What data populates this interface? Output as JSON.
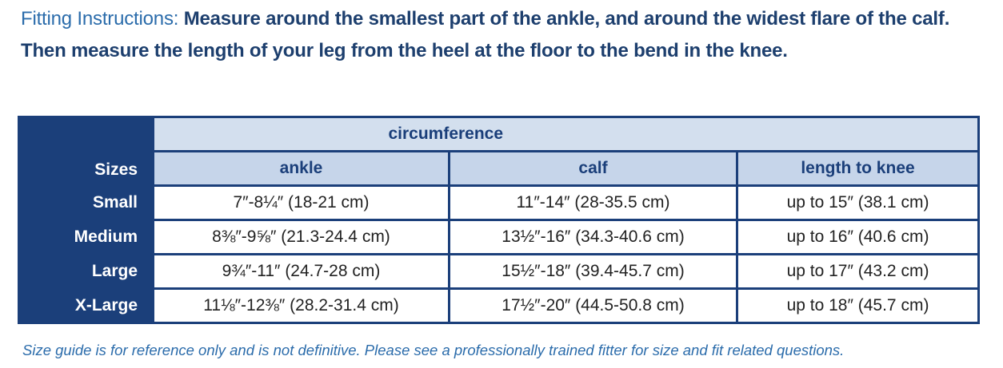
{
  "instructions": {
    "label": "Fitting Instructions:",
    "text": "Measure around the smallest part of the ankle, and around the widest flare of the calf. Then measure the length of your leg from the heel at the floor to the bend in the knee."
  },
  "table": {
    "group_header": "circumference",
    "columns": [
      "Sizes",
      "ankle",
      "calf",
      "length to knee"
    ],
    "rows": [
      [
        "Small",
        "7″-8¼″ (18-21 cm)",
        "11″-14″ (28-35.5 cm)",
        "up to 15″ (38.1 cm)"
      ],
      [
        "Medium",
        "8⅜″-9⅝″ (21.3-24.4 cm)",
        "13½″-16″ (34.3-40.6 cm)",
        "up to 16″ (40.6 cm)"
      ],
      [
        "Large",
        "9¾″-11″ (24.7-28 cm)",
        "15½″-18″ (39.4-45.7 cm)",
        "up to 17″ (43.2 cm)"
      ],
      [
        "X-Large",
        "11⅛″-12⅜″ (28.2-31.4 cm)",
        "17½″-20″ (44.5-50.8 cm)",
        "up to 18″ (45.7 cm)"
      ]
    ]
  },
  "footnote": "Size guide is for reference only and is not definitive. Please see a professionally trained fitter for size and fit related questions."
}
